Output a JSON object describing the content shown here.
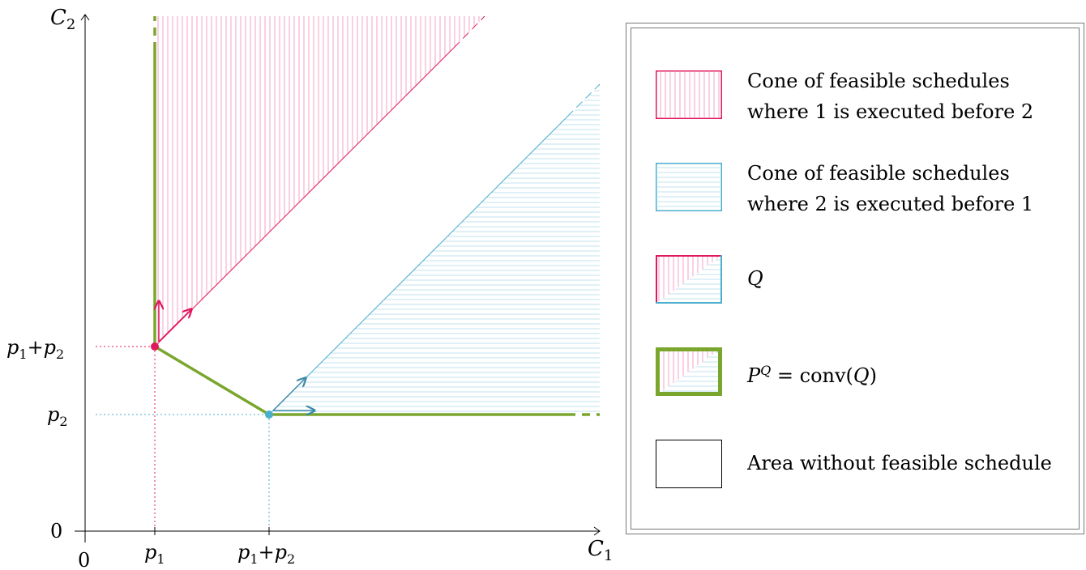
{
  "axes": {
    "x_label": "C",
    "x_label_sub": "1",
    "y_label": "C",
    "y_label_sub": "2",
    "origin_x_tick": "0",
    "origin_y_tick": "0",
    "x_ticks": [
      {
        "main": "p",
        "sub": "1",
        "extra": ""
      },
      {
        "main": "p",
        "sub": "1",
        "extra": "+p",
        "extra_sub": "2"
      }
    ],
    "y_ticks": [
      {
        "main": "p",
        "sub": "2",
        "extra": ""
      },
      {
        "main": "p",
        "sub": "1",
        "extra": "+p",
        "extra_sub": "2"
      }
    ]
  },
  "colors": {
    "pink": "#e0195e",
    "pink_hatch": "#f4a3c4",
    "blue": "#4aaecd",
    "blue_hatch": "#bfe3ef",
    "green": "#7aa62e",
    "axis": "#000000"
  },
  "legend": {
    "items": [
      {
        "id": "pink-cone",
        "line1": "Cone of feasible schedules",
        "line2": "where 1 is executed before 2"
      },
      {
        "id": "blue-cone",
        "line1": "Cone of feasible schedules",
        "line2": "where 2 is executed before 1"
      },
      {
        "id": "q",
        "line1": "Q",
        "line2": ""
      },
      {
        "id": "pq",
        "line1": "P",
        "sup": "Q",
        "rest": " = conv(",
        "q": "Q",
        "close": ")"
      },
      {
        "id": "empty",
        "line1": "Area without feasible schedule",
        "line2": ""
      }
    ]
  }
}
